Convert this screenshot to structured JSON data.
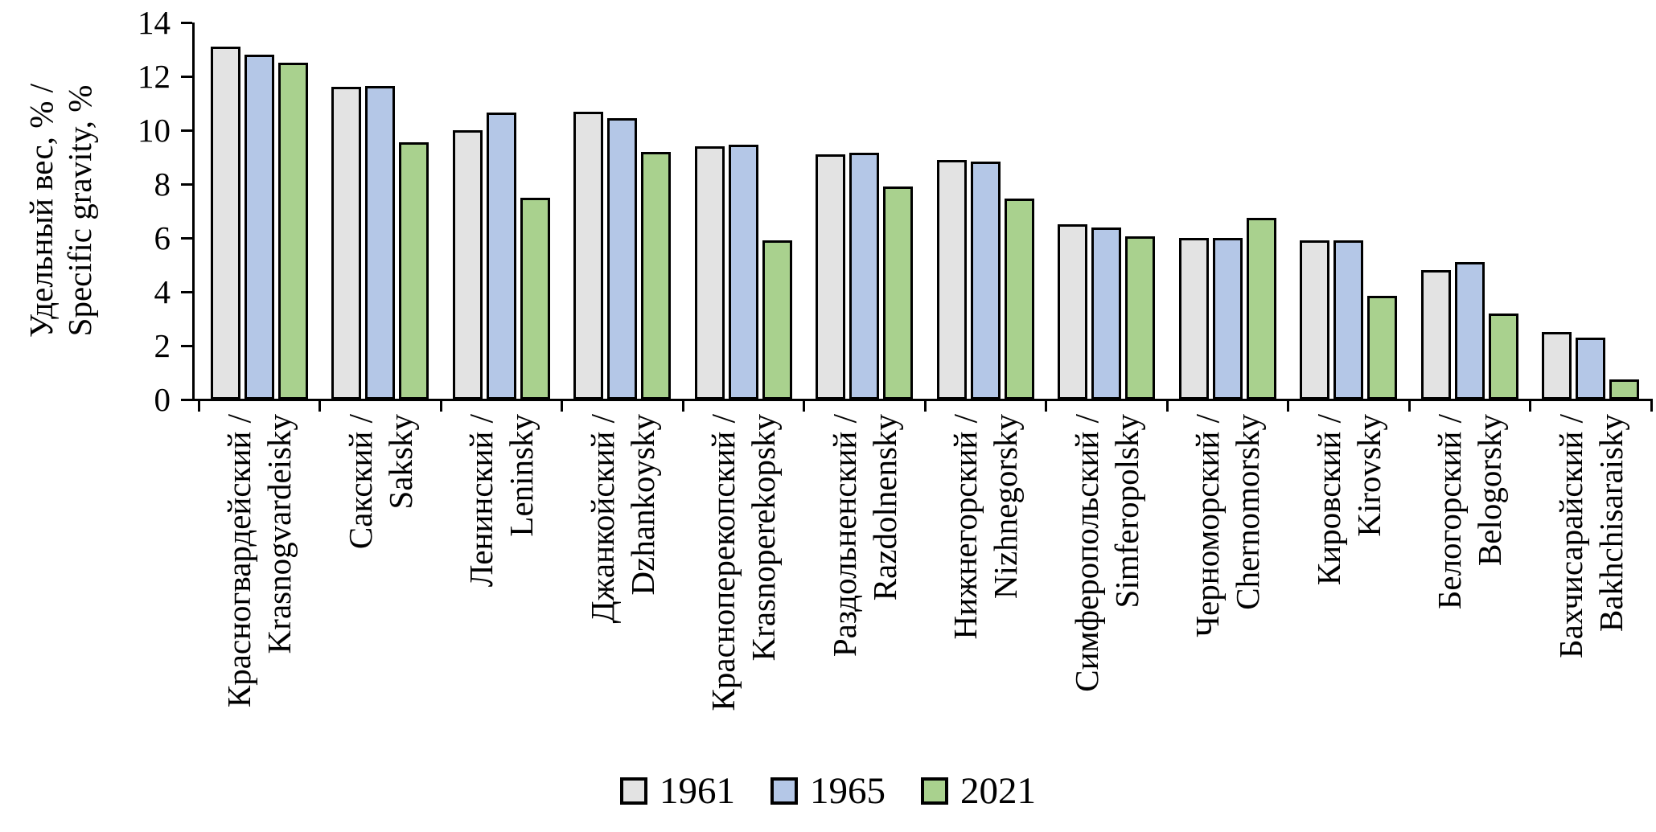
{
  "chart_data": {
    "type": "bar",
    "title": "",
    "y_axis": {
      "label_line1": "Удельный вес, % /",
      "label_line2": "Specific gravity, %",
      "min": 0,
      "max": 14,
      "tick_step": 2,
      "ticks": [
        0,
        2,
        4,
        6,
        8,
        10,
        12,
        14
      ]
    },
    "x_axis": {
      "label": ""
    },
    "grid": false,
    "legend_position": "bottom",
    "categories": [
      {
        "line1": "Красногвардейский /",
        "line2": "Krasnogvardeisky"
      },
      {
        "line1": "Сакский /",
        "line2": "Saksky"
      },
      {
        "line1": "Ленинский /",
        "line2": "Leninsky"
      },
      {
        "line1": "Джанкойский /",
        "line2": "Dzhankoysky"
      },
      {
        "line1": "Красноперекопский /",
        "line2": "Krasnoperekopsky"
      },
      {
        "line1": "Раздольненский /",
        "line2": "Razdolnensky"
      },
      {
        "line1": "Нижнегорский /",
        "line2": "Nizhnegorsky"
      },
      {
        "line1": "Симферопольский /",
        "line2": "Simferopolsky"
      },
      {
        "line1": "Черноморский /",
        "line2": "Chernomorsky"
      },
      {
        "line1": "Кировский /",
        "line2": "Kirovsky"
      },
      {
        "line1": "Белогорский /",
        "line2": "Belogorsky"
      },
      {
        "line1": "Бахчисарайский /",
        "line2": "Bakhchisaraisky"
      }
    ],
    "series": [
      {
        "name": "1961",
        "color": "#E3E3E3",
        "values": [
          13.1,
          11.6,
          10.0,
          10.7,
          9.4,
          9.1,
          8.9,
          6.5,
          6.0,
          5.9,
          4.8,
          2.5
        ]
      },
      {
        "name": "1965",
        "color": "#B4C7E7",
        "values": [
          12.8,
          11.65,
          10.65,
          10.45,
          9.45,
          9.15,
          8.85,
          6.4,
          6.0,
          5.9,
          5.1,
          2.3
        ]
      },
      {
        "name": "2021",
        "color": "#A9D18E",
        "values": [
          12.5,
          9.55,
          7.5,
          9.2,
          5.9,
          7.9,
          7.45,
          6.05,
          6.75,
          3.85,
          3.2,
          0.75
        ]
      }
    ],
    "outline_color": "#000000"
  }
}
